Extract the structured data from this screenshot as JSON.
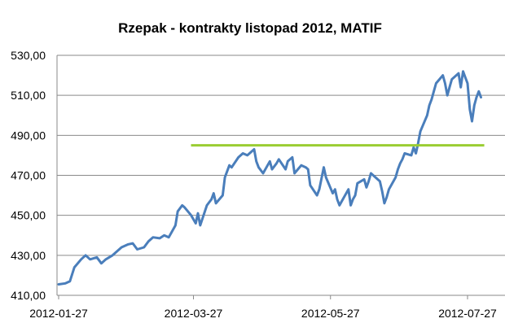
{
  "chart_data": {
    "type": "line",
    "title": "Rzepak - kontrakty listopad 2012, MATIF",
    "xlabel": "",
    "ylabel": "",
    "x_ticks": [
      "2012-01-27",
      "2012-03-27",
      "2012-05-27",
      "2012-07-27"
    ],
    "x_tick_dates": [
      "2012-01-27",
      "2012-03-27",
      "2012-05-27",
      "2012-07-27"
    ],
    "xlim": [
      "2012-01-27",
      "2012-08-02"
    ],
    "y_ticks": [
      "410,00",
      "430,00",
      "450,00",
      "470,00",
      "490,00",
      "510,00",
      "530,00"
    ],
    "ylim": [
      410,
      530
    ],
    "grid": true,
    "legend": "none",
    "series": [
      {
        "color": "#4a7ebb",
        "points": [
          [
            "2012-01-27",
            415.5
          ],
          [
            "2012-01-30",
            416
          ],
          [
            "2012-02-01",
            417
          ],
          [
            "2012-02-03",
            424
          ],
          [
            "2012-02-06",
            428
          ],
          [
            "2012-02-08",
            430
          ],
          [
            "2012-02-10",
            428
          ],
          [
            "2012-02-13",
            429
          ],
          [
            "2012-02-15",
            426
          ],
          [
            "2012-02-17",
            428
          ],
          [
            "2012-02-20",
            430
          ],
          [
            "2012-02-22",
            432
          ],
          [
            "2012-02-24",
            434
          ],
          [
            "2012-02-27",
            435.5
          ],
          [
            "2012-02-29",
            436
          ],
          [
            "2012-03-02",
            433
          ],
          [
            "2012-03-05",
            434
          ],
          [
            "2012-03-07",
            437
          ],
          [
            "2012-03-09",
            439
          ],
          [
            "2012-03-12",
            438.5
          ],
          [
            "2012-03-14",
            440
          ],
          [
            "2012-03-16",
            439
          ],
          [
            "2012-03-19",
            445
          ],
          [
            "2012-03-20",
            452
          ],
          [
            "2012-03-22",
            455
          ],
          [
            "2012-03-23",
            454
          ],
          [
            "2012-03-26",
            450
          ],
          [
            "2012-03-28",
            446
          ],
          [
            "2012-03-29",
            451
          ],
          [
            "2012-03-30",
            445
          ],
          [
            "2012-04-02",
            455
          ],
          [
            "2012-04-04",
            458
          ],
          [
            "2012-04-05",
            461
          ],
          [
            "2012-04-06",
            456
          ],
          [
            "2012-04-09",
            460
          ],
          [
            "2012-04-10",
            469
          ],
          [
            "2012-04-12",
            475
          ],
          [
            "2012-04-13",
            474
          ],
          [
            "2012-04-16",
            479
          ],
          [
            "2012-04-18",
            481
          ],
          [
            "2012-04-20",
            480
          ],
          [
            "2012-04-23",
            483
          ],
          [
            "2012-04-24",
            477
          ],
          [
            "2012-04-25",
            474
          ],
          [
            "2012-04-27",
            471
          ],
          [
            "2012-04-30",
            477
          ],
          [
            "2012-05-01",
            473
          ],
          [
            "2012-05-03",
            476
          ],
          [
            "2012-05-04",
            478
          ],
          [
            "2012-05-07",
            473
          ],
          [
            "2012-05-08",
            477
          ],
          [
            "2012-05-10",
            479
          ],
          [
            "2012-05-11",
            471
          ],
          [
            "2012-05-14",
            475
          ],
          [
            "2012-05-16",
            474
          ],
          [
            "2012-05-17",
            473
          ],
          [
            "2012-05-18",
            465
          ],
          [
            "2012-05-21",
            460
          ],
          [
            "2012-05-22",
            463
          ],
          [
            "2012-05-24",
            474
          ],
          [
            "2012-05-25",
            469
          ],
          [
            "2012-05-28",
            461
          ],
          [
            "2012-05-29",
            463
          ],
          [
            "2012-05-30",
            458
          ],
          [
            "2012-05-31",
            455
          ],
          [
            "2012-06-01",
            457
          ],
          [
            "2012-06-04",
            463
          ],
          [
            "2012-06-05",
            455
          ],
          [
            "2012-06-06",
            458
          ],
          [
            "2012-06-07",
            460
          ],
          [
            "2012-06-08",
            466
          ],
          [
            "2012-06-11",
            468
          ],
          [
            "2012-06-12",
            464
          ],
          [
            "2012-06-13",
            467
          ],
          [
            "2012-06-14",
            471
          ],
          [
            "2012-06-15",
            470
          ],
          [
            "2012-06-18",
            467
          ],
          [
            "2012-06-19",
            462
          ],
          [
            "2012-06-20",
            456
          ],
          [
            "2012-06-21",
            459
          ],
          [
            "2012-06-22",
            463
          ],
          [
            "2012-06-25",
            469
          ],
          [
            "2012-06-26",
            473
          ],
          [
            "2012-06-27",
            476
          ],
          [
            "2012-06-28",
            478
          ],
          [
            "2012-06-29",
            481
          ],
          [
            "2012-07-02",
            480
          ],
          [
            "2012-07-03",
            484
          ],
          [
            "2012-07-04",
            481
          ],
          [
            "2012-07-05",
            486
          ],
          [
            "2012-07-06",
            492
          ],
          [
            "2012-07-09",
            500
          ],
          [
            "2012-07-10",
            505
          ],
          [
            "2012-07-11",
            508
          ],
          [
            "2012-07-12",
            512
          ],
          [
            "2012-07-13",
            516
          ],
          [
            "2012-07-16",
            520
          ],
          [
            "2012-07-17",
            516
          ],
          [
            "2012-07-18",
            510
          ],
          [
            "2012-07-19",
            514
          ],
          [
            "2012-07-20",
            518
          ],
          [
            "2012-07-23",
            521
          ],
          [
            "2012-07-24",
            514
          ],
          [
            "2012-07-25",
            522
          ],
          [
            "2012-07-26",
            519
          ],
          [
            "2012-07-27",
            516
          ],
          [
            "2012-07-28",
            503
          ],
          [
            "2012-07-29",
            497
          ],
          [
            "2012-07-30",
            505
          ],
          [
            "2012-07-31",
            509
          ],
          [
            "2012-08-01",
            512
          ],
          [
            "2012-08-02",
            509
          ]
        ]
      },
      {
        "color": "#9acd32",
        "points": [
          [
            "2012-03-27",
            485
          ],
          [
            "2012-08-02",
            485
          ]
        ]
      }
    ]
  }
}
